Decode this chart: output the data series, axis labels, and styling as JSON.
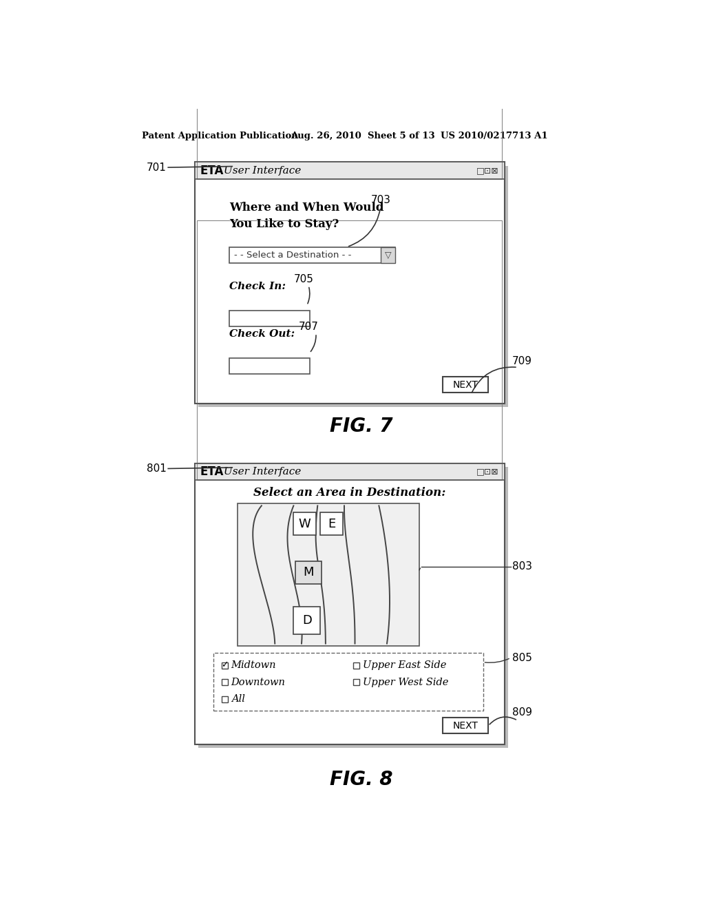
{
  "bg_color": "#ffffff",
  "header_left": "Patent Application Publication",
  "header_mid": "Aug. 26, 2010  Sheet 5 of 13",
  "header_right": "US 2010/0217713 A1",
  "fig7": {
    "label": "701",
    "title_bar_text": "ETA User Interface",
    "question": "WHERE AND WHEN WOULD\nYOU LIKE TO STAY?",
    "question_label": "703",
    "dropdown_text": "- - SELECT A DESTINATION - -",
    "checkin_label": "Check In:",
    "checkin_ref": "705",
    "checkout_label": "Check Out:",
    "checkout_ref": "707",
    "next_button": "NEXT",
    "next_ref": "709",
    "caption": "FIG. 7"
  },
  "fig8": {
    "label": "801",
    "title_bar_text": "ETA User Interface",
    "subtitle": "Select an Area in Destination:",
    "map_label": "803",
    "checkbox_label": "805",
    "next_button": "NEXT",
    "next_ref": "809",
    "caption": "FIG. 8",
    "cb_left": [
      {
        "checked": true,
        "text": "Midtown"
      },
      {
        "checked": false,
        "text": "Downtown"
      },
      {
        "checked": false,
        "text": "All"
      }
    ],
    "cb_right": [
      {
        "checked": false,
        "text": "Upper East Side"
      },
      {
        "checked": false,
        "text": "Upper West Side"
      }
    ]
  }
}
